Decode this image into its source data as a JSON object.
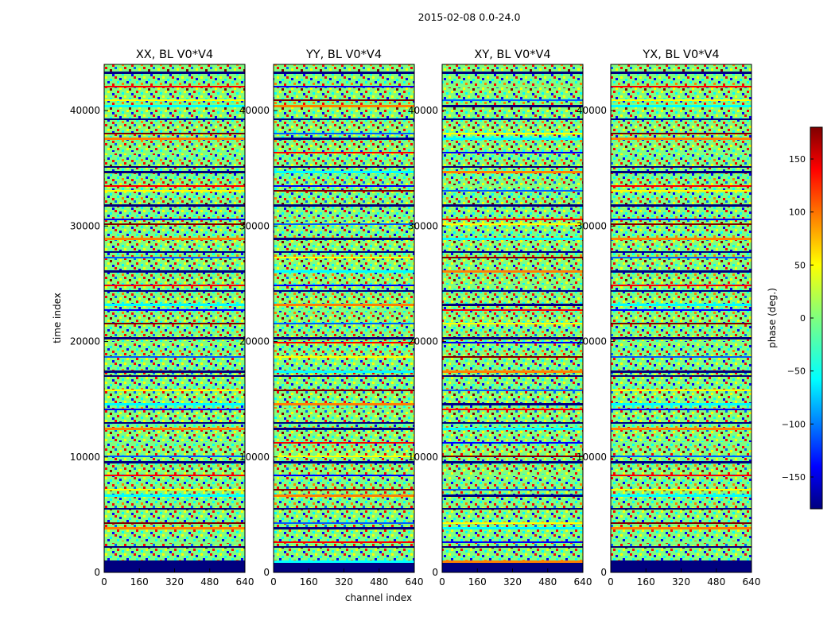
{
  "figure": {
    "suptitle": "2015-02-08 0.0-24.0"
  },
  "chart_data": {
    "type": "heatmap",
    "title": "2015-02-08 0.0-24.0",
    "xlabel": "channel index",
    "ylabel": "time index",
    "xlim": [
      0,
      640
    ],
    "ylim": [
      0,
      44000
    ],
    "xticks": [
      "0",
      "160",
      "320",
      "480",
      "640"
    ],
    "yticks": [
      "0",
      "10000",
      "20000",
      "30000",
      "40000"
    ],
    "panels": [
      {
        "title": "XX, BL V0*V4",
        "polarization": "XX"
      },
      {
        "title": "YY, BL V0*V4",
        "polarization": "YY"
      },
      {
        "title": "XY, BL V0*V4",
        "polarization": "XY"
      },
      {
        "title": "YX, BL V0*V4",
        "polarization": "YX"
      }
    ],
    "colorbar": {
      "label": "phase (deg.)",
      "range": [
        -180,
        180
      ],
      "ticks": [
        "150",
        "100",
        "50",
        "0",
        "−50",
        "−100",
        "−150"
      ],
      "colormap": "jet"
    },
    "value_description": "visibility phase per time index and channel; mostly noise-like phase with horizontal flagged/blank bands"
  },
  "colors": {
    "jet_dark_blue": "#00007f",
    "jet_blue": "#0000ff",
    "jet_cyan": "#00ffff",
    "jet_green": "#7fff7f",
    "jet_yellow": "#ffff00",
    "jet_red": "#ff0000",
    "jet_dark_red": "#7f0000"
  }
}
